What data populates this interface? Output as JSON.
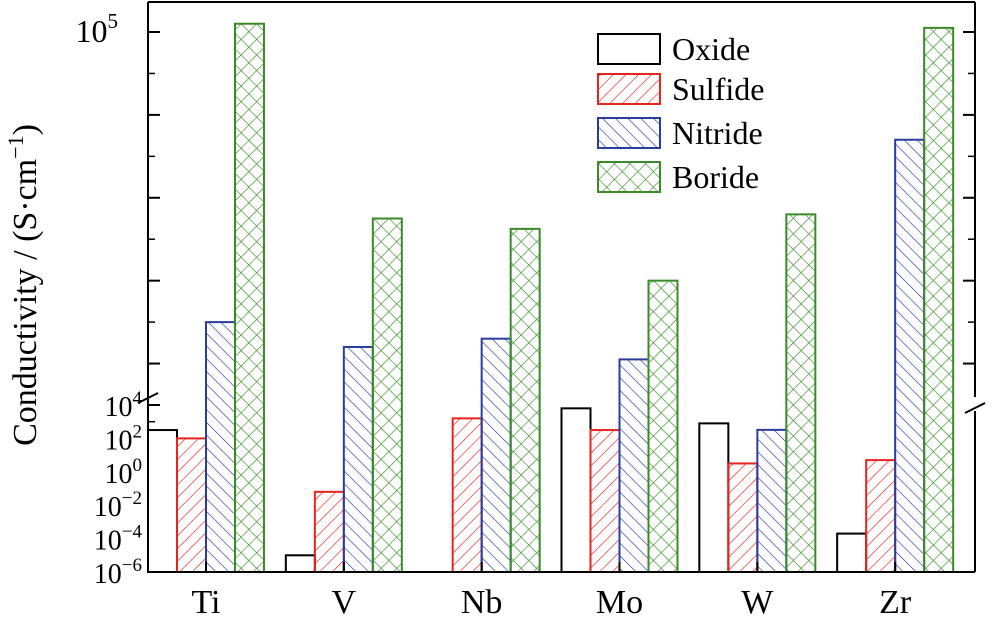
{
  "chart_data": {
    "type": "bar",
    "ylabel": "Conductivity / (S·cm",
    "ylabel_exp": "−1",
    "ylabel_close": ")",
    "yscale": "broken: log lower segment, linear upper segment",
    "y_lower_exponents": [
      -6,
      -4,
      -2,
      0,
      2,
      4
    ],
    "y_upper_tick_label": {
      "base": "10",
      "exp": "5"
    },
    "categories": [
      "Ti",
      "V",
      "Nb",
      "Mo",
      "W",
      "Zr"
    ],
    "series": [
      {
        "name": "Oxide",
        "key": "oxide",
        "color": "#000000",
        "pattern": "none",
        "log10_values": [
          2.5,
          -5.0,
          -6.5,
          3.8,
          2.9,
          -3.7
        ]
      },
      {
        "name": "Sulfide",
        "key": "sulfide",
        "color": "#e8231f",
        "pattern": "diagonal",
        "log10_values": [
          2.0,
          -1.2,
          3.2,
          2.5,
          0.5,
          0.7
        ]
      },
      {
        "name": "Nitride",
        "key": "nitride",
        "color": "#2b3d9c",
        "pattern": "antidiagonal",
        "values": [
          30000,
          24000,
          26000,
          21000,
          4000,
          74000
        ]
      },
      {
        "name": "Boride",
        "key": "boride",
        "color": "#3b8a2a",
        "pattern": "crosshatch",
        "values": [
          102000,
          55000,
          52500,
          40000,
          56000,
          101000
        ]
      }
    ],
    "legend_position": "top-right"
  }
}
